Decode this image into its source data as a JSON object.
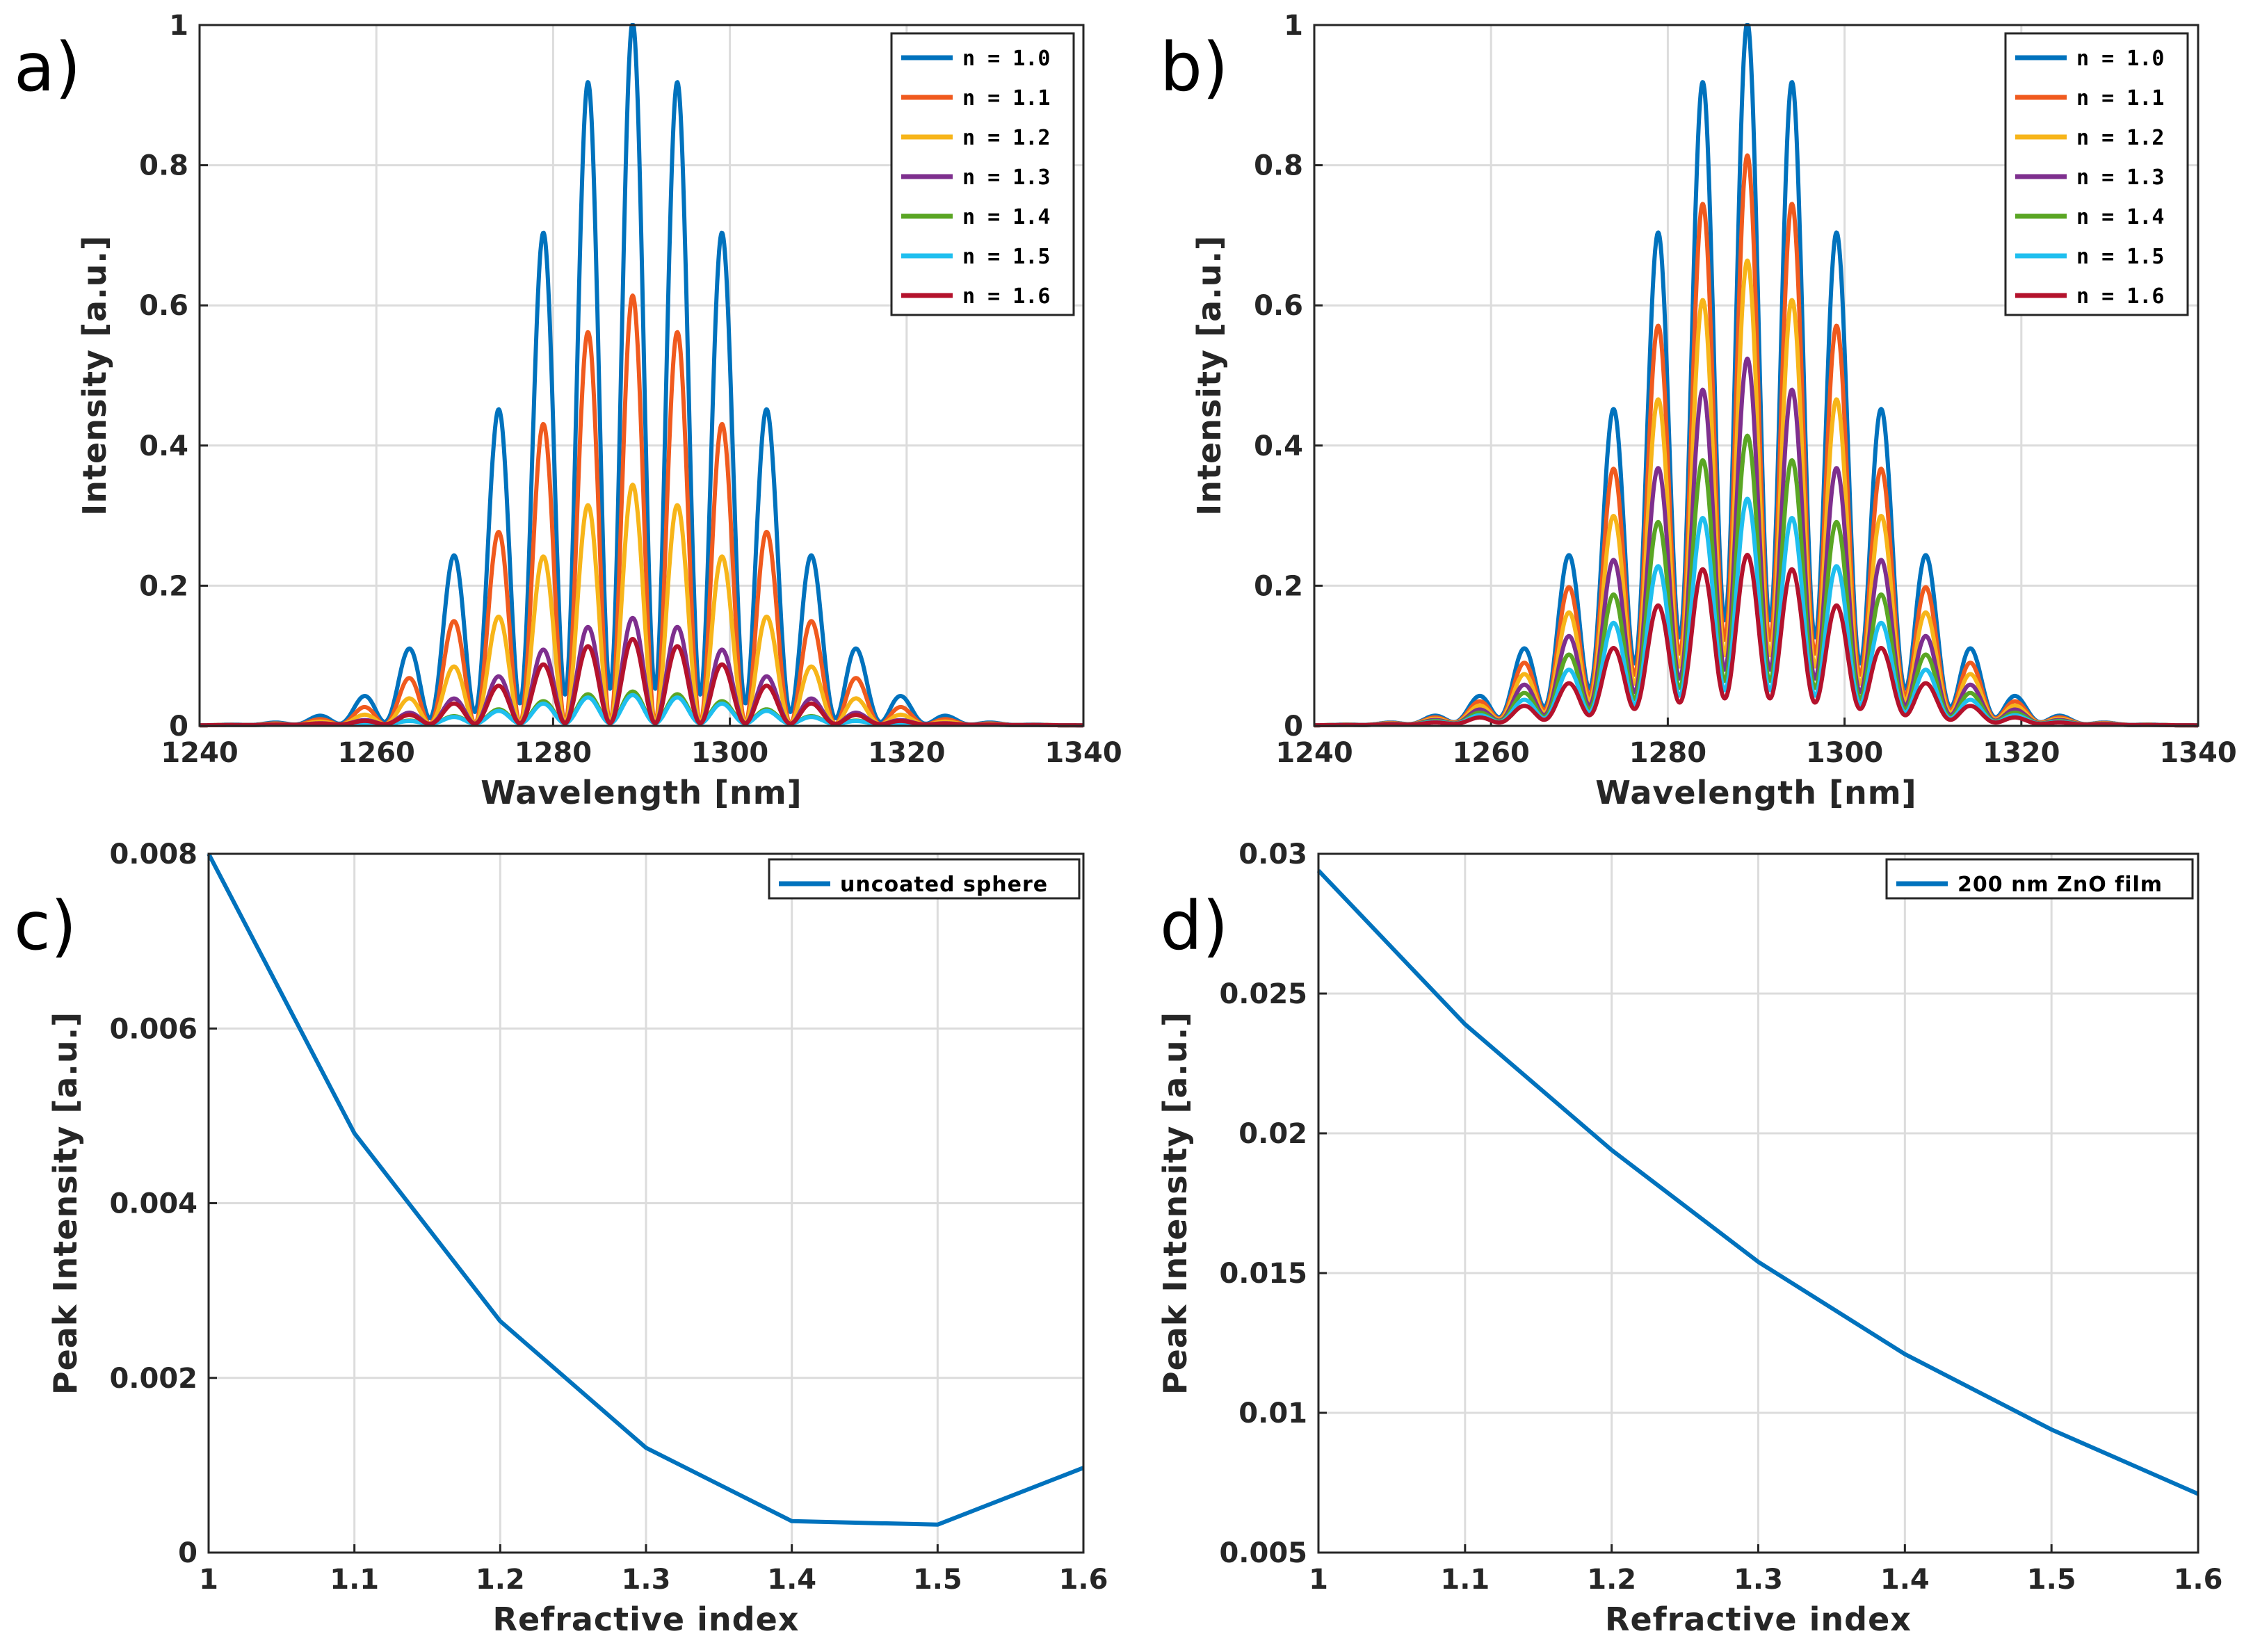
{
  "panel_labels": [
    "a)",
    "b)",
    "c)",
    "d)"
  ],
  "chart_data": [
    {
      "id": "a",
      "type": "line",
      "title": "",
      "xlabel": "Wavelength [nm]",
      "ylabel": "Intensity [a.u.]",
      "xlim": [
        1240,
        1340
      ],
      "ylim": [
        0,
        1
      ],
      "xticks": [
        "1240",
        "1260",
        "1280",
        "1300",
        "1320",
        "1340"
      ],
      "yticks": [
        "0",
        "0.2",
        "0.4",
        "0.6",
        "0.8",
        "1"
      ],
      "fringe_period_nm": 5.1,
      "fringe_center_nm": 1289,
      "series": [
        {
          "name": "n = 1.0",
          "color": "#0072bd",
          "peak": 1.0,
          "dip": 0.05
        },
        {
          "name": "n = 1.1",
          "color": "#f05a1e",
          "peak": 0.61,
          "dip": 0.0
        },
        {
          "name": "n = 1.2",
          "color": "#f7b519",
          "peak": 0.34,
          "dip": 0.0
        },
        {
          "name": "n = 1.3",
          "color": "#7e2f8e",
          "peak": 0.15,
          "dip": 0.0
        },
        {
          "name": "n = 1.4",
          "color": "#5aa624",
          "peak": 0.045,
          "dip": 0.0
        },
        {
          "name": "n = 1.5",
          "color": "#1fbfef",
          "peak": 0.04,
          "dip": 0.0
        },
        {
          "name": "n = 1.6",
          "color": "#b4122c",
          "peak": 0.12,
          "dip": 0.0
        }
      ]
    },
    {
      "id": "b",
      "type": "line",
      "title": "",
      "xlabel": "Wavelength [nm]",
      "ylabel": "Intensity [a.u.]",
      "xlim": [
        1240,
        1340
      ],
      "ylim": [
        0,
        1
      ],
      "xticks": [
        "1240",
        "1260",
        "1280",
        "1300",
        "1320",
        "1340"
      ],
      "yticks": [
        "0",
        "0.2",
        "0.4",
        "0.6",
        "0.8",
        "1"
      ],
      "fringe_period_nm": 5.1,
      "fringe_center_nm": 1289,
      "series": [
        {
          "name": "n = 1.0",
          "color": "#0072bd",
          "peak": 1.0,
          "dip": 0.15
        },
        {
          "name": "n = 1.1",
          "color": "#f05a1e",
          "peak": 0.81,
          "dip": 0.15
        },
        {
          "name": "n = 1.2",
          "color": "#f7b519",
          "peak": 0.66,
          "dip": 0.15
        },
        {
          "name": "n = 1.3",
          "color": "#7e2f8e",
          "peak": 0.52,
          "dip": 0.15
        },
        {
          "name": "n = 1.4",
          "color": "#5aa624",
          "peak": 0.41,
          "dip": 0.15
        },
        {
          "name": "n = 1.5",
          "color": "#1fbfef",
          "peak": 0.32,
          "dip": 0.15
        },
        {
          "name": "n = 1.6",
          "color": "#b4122c",
          "peak": 0.24,
          "dip": 0.15
        }
      ]
    },
    {
      "id": "c",
      "type": "line",
      "title": "",
      "xlabel": "Refractive index",
      "ylabel": "Peak Intensity [a.u.]",
      "xlim": [
        1,
        1.6
      ],
      "ylim": [
        0,
        0.008
      ],
      "xticks": [
        "1",
        "1.1",
        "1.2",
        "1.3",
        "1.4",
        "1.5",
        "1.6"
      ],
      "yticks": [
        "0",
        "0.002",
        "0.004",
        "0.006",
        "0.008"
      ],
      "series": [
        {
          "name": "uncoated sphere",
          "color": "#0072bd",
          "x": [
            1.0,
            1.1,
            1.2,
            1.3,
            1.4,
            1.5,
            1.6
          ],
          "y": [
            0.008,
            0.0048,
            0.00265,
            0.0012,
            0.00036,
            0.00032,
            0.00097
          ]
        }
      ]
    },
    {
      "id": "d",
      "type": "line",
      "title": "",
      "xlabel": "Refractive index",
      "ylabel": "Peak Intensity [a.u.]",
      "xlim": [
        1,
        1.6
      ],
      "ylim": [
        0.005,
        0.03
      ],
      "xticks": [
        "1",
        "1.1",
        "1.2",
        "1.3",
        "1.4",
        "1.5",
        "1.6"
      ],
      "yticks": [
        "0.005",
        "0.01",
        "0.015",
        "0.02",
        "0.025",
        "0.03"
      ],
      "series": [
        {
          "name": "200 nm ZnO film",
          "color": "#0072bd",
          "x": [
            1.0,
            1.1,
            1.2,
            1.3,
            1.4,
            1.5,
            1.6
          ],
          "y": [
            0.0294,
            0.0239,
            0.0194,
            0.0154,
            0.0121,
            0.0094,
            0.0071
          ]
        }
      ]
    }
  ]
}
